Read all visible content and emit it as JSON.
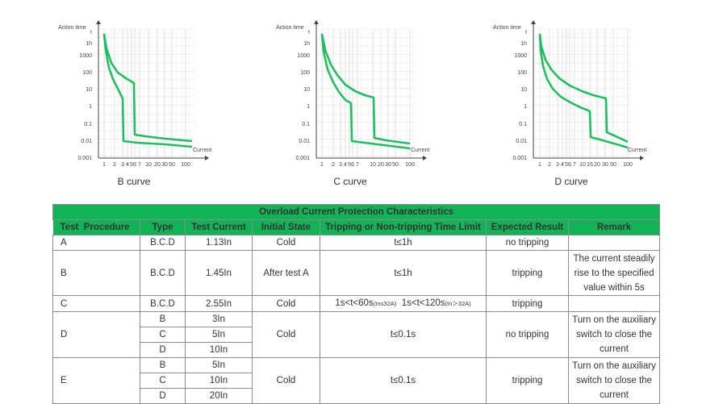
{
  "charts": [
    {
      "id": "b",
      "y_axis_label": "Action time",
      "y_ticks": [
        "t",
        "1h",
        "1000",
        "100",
        "10",
        "1",
        "0.1",
        "0.01",
        "0.001"
      ],
      "x_axis_label": "Current",
      "x_ticks": [
        "1",
        "2",
        "3",
        "4",
        "5",
        "6",
        "7",
        "10",
        "20",
        "30",
        "50",
        "100"
      ],
      "caption": "B curve"
    },
    {
      "id": "c",
      "y_axis_label": "Action time",
      "y_ticks": [
        "t",
        "1h",
        "1000",
        "100",
        "10",
        "1",
        "0.1",
        "0.01",
        "0.001"
      ],
      "x_axis_label": "Current",
      "x_ticks": [
        "1",
        "2",
        "3",
        "4",
        "5",
        "6",
        "7",
        "10",
        "20",
        "30",
        "50",
        "100"
      ],
      "caption": "C curve"
    },
    {
      "id": "d",
      "y_axis_label": "Action time",
      "y_ticks": [
        "t",
        "1h",
        "1000",
        "100",
        "10",
        "1",
        "0.1",
        "0.01",
        "0.001"
      ],
      "x_axis_label": "Current",
      "x_ticks": [
        "1",
        "2",
        "3",
        "4",
        "5",
        "6",
        "7",
        "10",
        "15",
        "20",
        "30",
        "50",
        "100"
      ],
      "caption": "D curve"
    }
  ],
  "curve_color": "#1fbf5f",
  "table": {
    "title": "Overload Current Protection Characteristics",
    "headers": [
      "Test  Procedure",
      "Type",
      "Test Current",
      "Initial State",
      "Tripping or Non-tripping Time Limit",
      "Expected Result",
      "Remark"
    ],
    "row_a": {
      "procedure": "A",
      "type": "B.C.D",
      "current": "1.13In",
      "state": "Cold",
      "time": "t≤1h",
      "result": "no tripping",
      "remark": ""
    },
    "row_b": {
      "procedure": "B",
      "type": "B.C.D",
      "current": "1.45In",
      "state": "After test A",
      "time": "t≤1h",
      "result": "tripping",
      "remark_1": "The current steadily",
      "remark_2": "rise to the specified",
      "remark_3": "value within 5s"
    },
    "row_c": {
      "procedure": "C",
      "type": "B.C.D",
      "current": "2.55In",
      "state": "Cold",
      "time_1": "1s<t<60s",
      "time_1_sub": "(In≤32A)",
      "time_2": "1s<t<120s",
      "time_2_sub": "(In＞32A)",
      "result": "tripping",
      "remark": ""
    },
    "row_d": {
      "procedure": "D",
      "types": [
        "B",
        "C",
        "D"
      ],
      "currents": [
        "3In",
        "5In",
        "10In"
      ],
      "state": "Cold",
      "time": "t≤0.1s",
      "result": "no tripping",
      "remark_1": "Turn on the auxiliary",
      "remark_2": "switch to close the",
      "remark_3": "current"
    },
    "row_e": {
      "procedure": "E",
      "types": [
        "B",
        "C",
        "D"
      ],
      "currents": [
        "5In",
        "10In",
        "20In"
      ],
      "state": "Cold",
      "time": "t≤0.1s",
      "result": "tripping",
      "remark_1": "Turn on the auxiliary",
      "remark_2": "switch to close the",
      "remark_3": "current"
    }
  }
}
